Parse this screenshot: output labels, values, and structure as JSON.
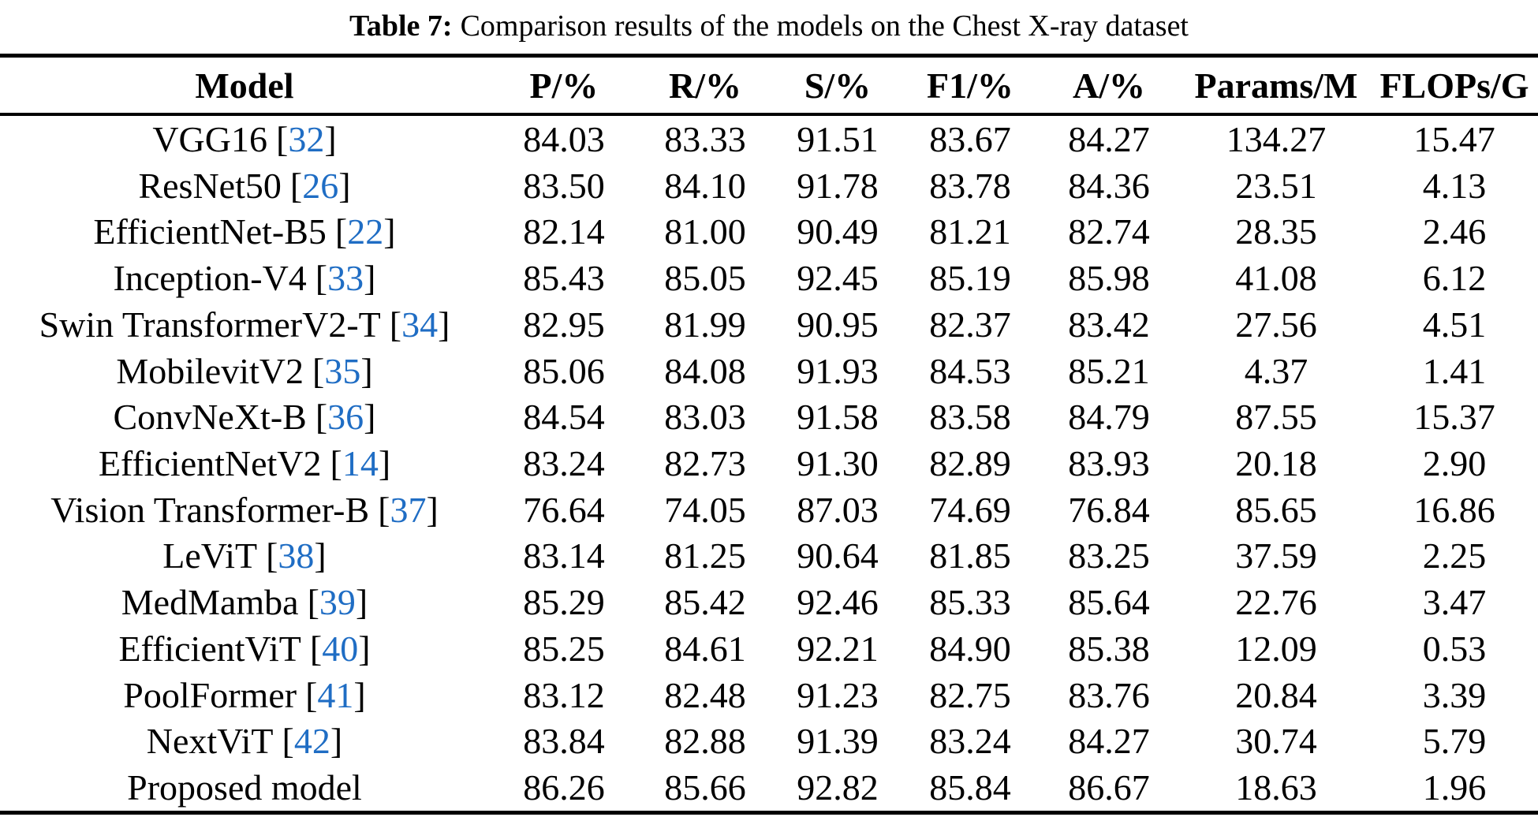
{
  "caption": {
    "label": "Table 7:",
    "text": "Comparison results of the models on the Chest X-ray dataset"
  },
  "colors": {
    "citation_link": "#1f6dc4",
    "text": "#000000",
    "rule": "#000000"
  },
  "table": {
    "columns": [
      "Model",
      "P/%",
      "R/%",
      "S/%",
      "F1/%",
      "A/%",
      "Params/M",
      "FLOPs/G"
    ],
    "rows": [
      {
        "model": "VGG16",
        "ref": "32",
        "values": [
          "84.03",
          "83.33",
          "91.51",
          "83.67",
          "84.27",
          "134.27",
          "15.47"
        ]
      },
      {
        "model": "ResNet50",
        "ref": "26",
        "values": [
          "83.50",
          "84.10",
          "91.78",
          "83.78",
          "84.36",
          "23.51",
          "4.13"
        ]
      },
      {
        "model": "EfficientNet-B5",
        "ref": "22",
        "values": [
          "82.14",
          "81.00",
          "90.49",
          "81.21",
          "82.74",
          "28.35",
          "2.46"
        ]
      },
      {
        "model": "Inception-V4",
        "ref": "33",
        "values": [
          "85.43",
          "85.05",
          "92.45",
          "85.19",
          "85.98",
          "41.08",
          "6.12"
        ]
      },
      {
        "model": "Swin TransformerV2-T",
        "ref": "34",
        "values": [
          "82.95",
          "81.99",
          "90.95",
          "82.37",
          "83.42",
          "27.56",
          "4.51"
        ]
      },
      {
        "model": "MobilevitV2",
        "ref": "35",
        "values": [
          "85.06",
          "84.08",
          "91.93",
          "84.53",
          "85.21",
          "4.37",
          "1.41"
        ]
      },
      {
        "model": "ConvNeXt-B",
        "ref": "36",
        "values": [
          "84.54",
          "83.03",
          "91.58",
          "83.58",
          "84.79",
          "87.55",
          "15.37"
        ]
      },
      {
        "model": "EfficientNetV2",
        "ref": "14",
        "values": [
          "83.24",
          "82.73",
          "91.30",
          "82.89",
          "83.93",
          "20.18",
          "2.90"
        ]
      },
      {
        "model": "Vision Transformer-B",
        "ref": "37",
        "values": [
          "76.64",
          "74.05",
          "87.03",
          "74.69",
          "76.84",
          "85.65",
          "16.86"
        ]
      },
      {
        "model": "LeViT",
        "ref": "38",
        "values": [
          "83.14",
          "81.25",
          "90.64",
          "81.85",
          "83.25",
          "37.59",
          "2.25"
        ]
      },
      {
        "model": "MedMamba",
        "ref": "39",
        "values": [
          "85.29",
          "85.42",
          "92.46",
          "85.33",
          "85.64",
          "22.76",
          "3.47"
        ]
      },
      {
        "model": "EfficientViT",
        "ref": "40",
        "values": [
          "85.25",
          "84.61",
          "92.21",
          "84.90",
          "85.38",
          "12.09",
          "0.53"
        ]
      },
      {
        "model": "PoolFormer",
        "ref": "41",
        "values": [
          "83.12",
          "82.48",
          "91.23",
          "82.75",
          "83.76",
          "20.84",
          "3.39"
        ]
      },
      {
        "model": "NextViT",
        "ref": "42",
        "values": [
          "83.84",
          "82.88",
          "91.39",
          "83.24",
          "84.27",
          "30.74",
          "5.79"
        ]
      },
      {
        "model": "Proposed model",
        "ref": null,
        "values": [
          "86.26",
          "85.66",
          "92.82",
          "85.84",
          "86.67",
          "18.63",
          "1.96"
        ]
      }
    ]
  }
}
